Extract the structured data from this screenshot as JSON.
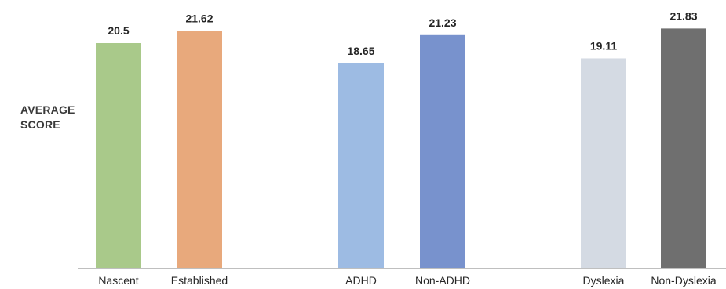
{
  "chart_data": {
    "type": "bar",
    "ylabel_lines": [
      "AVERAGE",
      "SCORE"
    ],
    "ylim": [
      0,
      22
    ],
    "grid": false,
    "legend": "none",
    "groups": [
      {
        "bars": [
          {
            "category": "Nascent",
            "value": 20.5,
            "label": "20.5",
            "color": "#a9c98a"
          },
          {
            "category": "Established",
            "value": 21.62,
            "label": "21.62",
            "color": "#e8a97c"
          }
        ]
      },
      {
        "bars": [
          {
            "category": "ADHD",
            "value": 18.65,
            "label": "18.65",
            "color": "#9dbbe3"
          },
          {
            "category": "Non-ADHD",
            "value": 21.23,
            "label": "21.23",
            "color": "#7892cd"
          }
        ]
      },
      {
        "bars": [
          {
            "category": "Dyslexia",
            "value": 19.11,
            "label": "19.11",
            "color": "#d4dae3"
          },
          {
            "category": "Non-Dyslexia",
            "value": 21.83,
            "label": "21.83",
            "color": "#6f6f6f"
          }
        ]
      }
    ]
  },
  "colors": {
    "axis": "#bfbfbf",
    "value_label": "#262626",
    "category_label": "#262626",
    "ylabel": "#3a3a3a"
  }
}
